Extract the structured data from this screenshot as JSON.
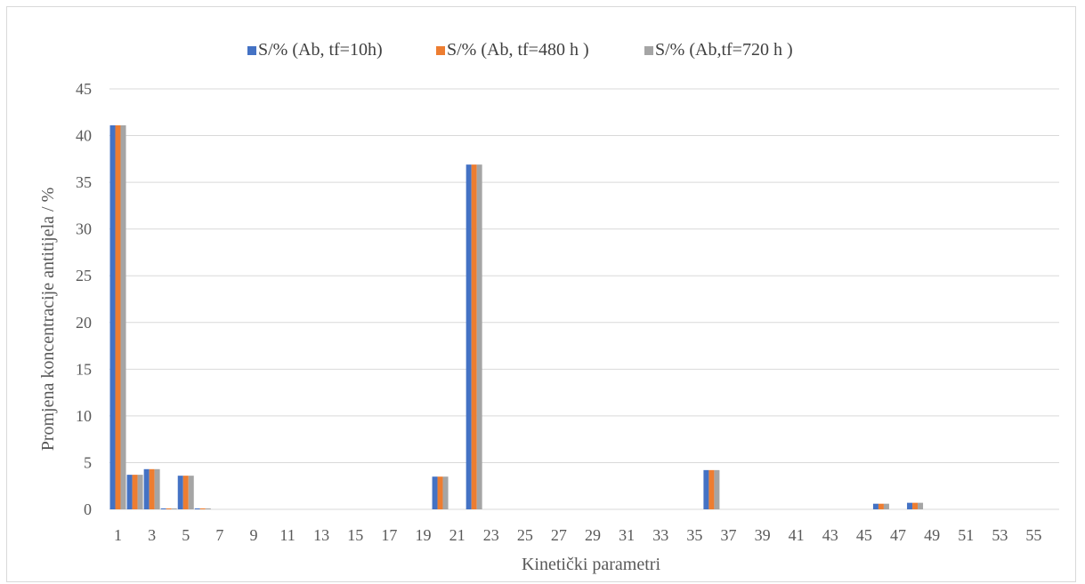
{
  "chart_data": {
    "type": "bar",
    "title": "",
    "xlabel": "Kinetički parametri",
    "ylabel": "Promjena koncentracije antitijela / %",
    "ylim": [
      0,
      45
    ],
    "yticks": [
      0,
      5,
      10,
      15,
      20,
      25,
      30,
      35,
      40,
      45
    ],
    "grid": true,
    "legend_position": "top",
    "x_tick_labels": [
      "1",
      "3",
      "5",
      "7",
      "9",
      "11",
      "13",
      "15",
      "17",
      "19",
      "21",
      "23",
      "25",
      "27",
      "29",
      "31",
      "33",
      "35",
      "37",
      "39",
      "41",
      "43",
      "45",
      "47",
      "49",
      "51",
      "53",
      "55"
    ],
    "categories": [
      1,
      2,
      3,
      4,
      5,
      6,
      7,
      8,
      9,
      10,
      11,
      12,
      13,
      14,
      15,
      16,
      17,
      18,
      19,
      20,
      21,
      22,
      23,
      24,
      25,
      26,
      27,
      28,
      29,
      30,
      31,
      32,
      33,
      34,
      35,
      36,
      37,
      38,
      39,
      40,
      41,
      42,
      43,
      44,
      45,
      46,
      47,
      48,
      49,
      50,
      51,
      52,
      53,
      54,
      55,
      56
    ],
    "series": [
      {
        "name": "S/% (Ab, tf=10h)",
        "color": "#4472c4",
        "values": [
          41.1,
          3.7,
          4.3,
          0.1,
          3.6,
          0.1,
          0,
          0,
          0,
          0,
          0,
          0,
          0,
          0,
          0,
          0,
          0,
          0,
          0,
          3.5,
          0,
          36.9,
          0,
          0,
          0,
          0,
          0,
          0,
          0,
          0,
          0,
          0,
          0,
          0,
          0,
          4.2,
          0,
          0,
          0,
          0,
          0,
          0,
          0,
          0,
          0,
          0.6,
          0,
          0.7,
          0,
          0,
          0,
          0,
          0,
          0,
          0,
          0
        ]
      },
      {
        "name": "S/% (Ab, tf=480 h )",
        "color": "#ed7d31",
        "values": [
          41.1,
          3.7,
          4.3,
          0.1,
          3.6,
          0.1,
          0,
          0,
          0,
          0,
          0,
          0,
          0,
          0,
          0,
          0,
          0,
          0,
          0,
          3.5,
          0,
          36.9,
          0,
          0,
          0,
          0,
          0,
          0,
          0,
          0,
          0,
          0,
          0,
          0,
          0,
          4.2,
          0,
          0,
          0,
          0,
          0,
          0,
          0,
          0,
          0,
          0.6,
          0,
          0.7,
          0,
          0,
          0,
          0,
          0,
          0,
          0,
          0
        ]
      },
      {
        "name": "S/% (Ab,tf=720 h )",
        "color": "#a5a5a5",
        "values": [
          41.1,
          3.7,
          4.3,
          0.1,
          3.6,
          0.1,
          0,
          0,
          0,
          0,
          0,
          0,
          0,
          0,
          0,
          0,
          0,
          0,
          0,
          3.5,
          0,
          36.9,
          0,
          0,
          0,
          0,
          0,
          0,
          0,
          0,
          0,
          0,
          0,
          0,
          0,
          4.2,
          0,
          0,
          0,
          0,
          0,
          0,
          0,
          0,
          0,
          0.6,
          0,
          0.7,
          0,
          0,
          0,
          0,
          0,
          0,
          0,
          0
        ]
      }
    ]
  },
  "colors": {
    "grid": "#d9d9d9",
    "text": "#595959",
    "border": "#d9d9d9"
  }
}
